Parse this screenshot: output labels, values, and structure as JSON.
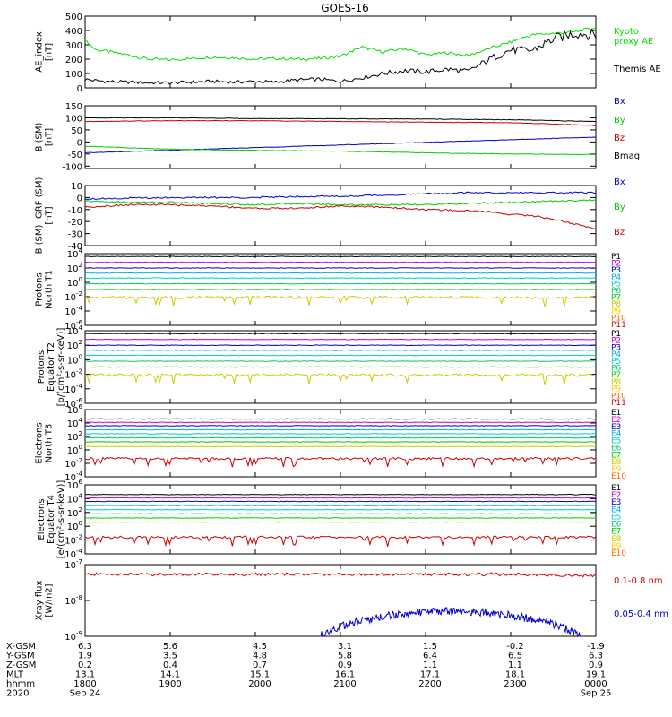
{
  "title": "GOES-16",
  "colors": {
    "green": "#00dd00",
    "black": "#000000",
    "blue": "#0000cc",
    "red": "#cc0000",
    "ch": [
      "#000000",
      "#cc00cc",
      "#0000cc",
      "#00aaff",
      "#00cccc",
      "#00cc66",
      "#00cc00",
      "#cccc00",
      "#ffcc00",
      "#ff6600",
      "#cc0000"
    ]
  },
  "chart_data": [
    {
      "id": "ae",
      "type": "line",
      "ylabel": [
        "AE_index",
        "[nT]"
      ],
      "ylim": [
        0,
        500
      ],
      "yticks": [
        0,
        100,
        200,
        300,
        400,
        500
      ],
      "legend": [
        {
          "text": "Kyoto",
          "color": "#00dd00"
        },
        {
          "text": "proxy AE",
          "color": "#00dd00"
        },
        {
          "text": "Themis AE",
          "color": "#000000"
        }
      ],
      "series": [
        {
          "name": "Kyoto proxy AE",
          "color": "#00dd00",
          "x": [
            0,
            0.5,
            1,
            2,
            3,
            4,
            5,
            6,
            7,
            8,
            9,
            10,
            11,
            12,
            13,
            14,
            15,
            16,
            17,
            18,
            19,
            20,
            21,
            22,
            23,
            24
          ],
          "y": [
            330,
            265,
            255,
            230,
            200,
            195,
            205,
            215,
            210,
            200,
            205,
            200,
            205,
            220,
            285,
            250,
            275,
            230,
            245,
            225,
            275,
            320,
            370,
            380,
            390,
            420
          ]
        },
        {
          "name": "Themis AE",
          "color": "#000000",
          "x": [
            0,
            0.5,
            1,
            2,
            3,
            4,
            5,
            6,
            7,
            8,
            9,
            10,
            11,
            12,
            13,
            14,
            15,
            16,
            17,
            18,
            19,
            20,
            21,
            22,
            23,
            24
          ],
          "y": [
            60,
            50,
            45,
            40,
            35,
            35,
            40,
            45,
            40,
            45,
            40,
            55,
            60,
            45,
            70,
            100,
            120,
            110,
            130,
            115,
            200,
            265,
            260,
            340,
            380,
            370
          ]
        }
      ]
    },
    {
      "id": "bsm",
      "type": "line",
      "ylabel": [
        "B (SM)",
        "[nT]"
      ],
      "ylim": [
        -110,
        150
      ],
      "yticks": [
        -100,
        -50,
        0,
        50,
        100,
        150
      ],
      "legend": [
        {
          "text": "Bx",
          "color": "#0000cc"
        },
        {
          "text": "By",
          "color": "#00cc00"
        },
        {
          "text": "Bz",
          "color": "#cc0000"
        },
        {
          "text": "Bmag",
          "color": "#000000"
        }
      ],
      "series": [
        {
          "name": "Bx",
          "color": "#0000cc",
          "x": [
            0,
            24
          ],
          "y": [
            -45,
            20
          ]
        },
        {
          "name": "By",
          "color": "#00cc00",
          "x": [
            0,
            4,
            8,
            12,
            16,
            20,
            24
          ],
          "y": [
            -18,
            -30,
            -35,
            -38,
            -45,
            -50,
            -52
          ]
        },
        {
          "name": "Bz",
          "color": "#cc0000",
          "x": [
            0,
            4,
            8,
            12,
            16,
            20,
            24
          ],
          "y": [
            85,
            88,
            88,
            85,
            82,
            80,
            68
          ]
        },
        {
          "name": "Bmag",
          "color": "#000000",
          "x": [
            0,
            4,
            8,
            12,
            16,
            20,
            24
          ],
          "y": [
            100,
            100,
            97,
            96,
            95,
            92,
            85
          ]
        }
      ]
    },
    {
      "id": "bigrf",
      "type": "line",
      "ylabel": [
        "B (SM)-IGRF (SM)",
        "[nT]"
      ],
      "ylim": [
        -40,
        10
      ],
      "yticks": [
        -40,
        -30,
        -20,
        -10,
        0,
        10
      ],
      "legend": [
        {
          "text": "Bx",
          "color": "#0000cc"
        },
        {
          "text": "By",
          "color": "#00cc00"
        },
        {
          "text": "Bz",
          "color": "#cc0000"
        }
      ],
      "series": [
        {
          "name": "Bx",
          "color": "#0000cc",
          "x": [
            0,
            4,
            8,
            10,
            12,
            14,
            16,
            18,
            20,
            22,
            24
          ],
          "y": [
            -1,
            0,
            0,
            1,
            1,
            2,
            3,
            4,
            4,
            4,
            4
          ]
        },
        {
          "name": "By",
          "color": "#00cc00",
          "x": [
            0,
            2,
            4,
            6,
            8,
            10,
            12,
            14,
            16,
            18,
            20,
            22,
            24
          ],
          "y": [
            -3,
            -4,
            -4,
            -5,
            -6,
            -5,
            -6,
            -6,
            -6,
            -5,
            -4,
            -3,
            -2
          ]
        },
        {
          "name": "Bz",
          "color": "#cc0000",
          "x": [
            0,
            2,
            4,
            6,
            8,
            10,
            12,
            14,
            16,
            18,
            19,
            20,
            21,
            22,
            23,
            24
          ],
          "y": [
            -8,
            -6,
            -6,
            -7,
            -9,
            -9,
            -7,
            -8,
            -10,
            -11,
            -12,
            -14,
            -15,
            -18,
            -22,
            -26
          ]
        }
      ]
    },
    {
      "id": "pn",
      "type": "line",
      "log": true,
      "ylabel": [
        "Protons",
        "North T1"
      ],
      "yexp": [
        -6,
        4
      ],
      "ytickexp": [
        -6,
        -4,
        -2,
        0,
        2,
        4
      ],
      "legend": [
        "P1",
        "P2",
        "P3",
        "P4",
        "P5",
        "P6",
        "P7",
        "P8",
        "P9",
        "P10",
        "P11"
      ],
      "levels": [
        3.6,
        2.8,
        2.0,
        1.3,
        0.6,
        -0.2,
        -1.0,
        -2.1
      ]
    },
    {
      "id": "pe",
      "type": "line",
      "log": true,
      "ylabel": [
        "Protons",
        "Equator T2",
        "[p/(cm²-s-sr-keV)]"
      ],
      "yexp": [
        -6,
        4
      ],
      "ytickexp": [
        -6,
        -4,
        -2,
        0,
        2,
        4
      ],
      "legend": [
        "P1",
        "P2",
        "P3",
        "P4",
        "P5",
        "P6",
        "P7",
        "P8",
        "P9",
        "P10",
        "P11"
      ],
      "levels": [
        3.6,
        2.8,
        2.0,
        1.3,
        0.6,
        -0.2,
        -1.0,
        -2.1
      ]
    },
    {
      "id": "en",
      "type": "line",
      "log": true,
      "ylabel": [
        "Electrons",
        "North T3"
      ],
      "yexp": [
        -4,
        6
      ],
      "ytickexp": [
        -4,
        -2,
        0,
        2,
        4,
        6
      ],
      "legend": [
        "E1",
        "E2",
        "E3",
        "E4",
        "E5",
        "E6",
        "E7",
        "E8",
        "E9",
        "E10"
      ],
      "levels": [
        4.6,
        4.1,
        3.6,
        3.0,
        2.4,
        1.8,
        1.2,
        0.5,
        -1.3
      ]
    },
    {
      "id": "ee",
      "type": "line",
      "log": true,
      "ylabel": [
        "Electrons",
        "Equator T4",
        "[e/(cm²-s-sr-keV)]"
      ],
      "yexp": [
        -4,
        6
      ],
      "ytickexp": [
        -4,
        -2,
        0,
        2,
        4,
        6
      ],
      "legend": [
        "E1",
        "E2",
        "E3",
        "E4",
        "E5",
        "E6",
        "E7",
        "E8",
        "E9",
        "E10"
      ],
      "levels": [
        4.6,
        4.1,
        3.6,
        3.0,
        2.4,
        1.8,
        1.2,
        0.5,
        -1.6
      ]
    },
    {
      "id": "xray",
      "type": "line",
      "log": true,
      "ylabel": [
        "Xray flux",
        "[W/m2]"
      ],
      "yexp": [
        -9,
        -7
      ],
      "ytickexp": [
        -9,
        -8,
        -7
      ],
      "legend": [
        {
          "text": "0.1-0.8 nm",
          "color": "#cc0000"
        },
        {
          "text": "0.05-0.4 nm",
          "color": "#0000cc"
        }
      ],
      "series": [
        {
          "name": "0.1-0.8 nm",
          "color": "#cc0000",
          "level": -7.27
        },
        {
          "name": "0.05-0.4 nm",
          "color": "#0000cc",
          "start": 11,
          "end": 23.3,
          "peak": -8.3
        }
      ]
    }
  ],
  "orbit_table": {
    "rows": [
      {
        "label": "X-GSM",
        "values": [
          "6.3",
          "5.6",
          "4.5",
          "3.1",
          "1.5",
          "-0.2",
          "-1.9"
        ]
      },
      {
        "label": "Y-GSM",
        "values": [
          "1.9",
          "3.5",
          "4.8",
          "5.8",
          "6.4",
          "6.5",
          "6.3"
        ]
      },
      {
        "label": "Z-GSM",
        "values": [
          "0.2",
          "0.4",
          "0.7",
          "0.9",
          "1.1",
          "1.1",
          "0.9"
        ]
      },
      {
        "label": "MLT",
        "values": [
          "13.1",
          "14.1",
          "15.1",
          "16.1",
          "17.1",
          "18.1",
          "19.1"
        ]
      },
      {
        "label": "hhmm",
        "values": [
          "1800",
          "1900",
          "2000",
          "2100",
          "2200",
          "2300",
          "0000"
        ]
      },
      {
        "label": "2020",
        "values": [
          "Sep 24",
          "",
          "",
          "",
          "",
          "",
          "Sep 25"
        ]
      }
    ]
  }
}
